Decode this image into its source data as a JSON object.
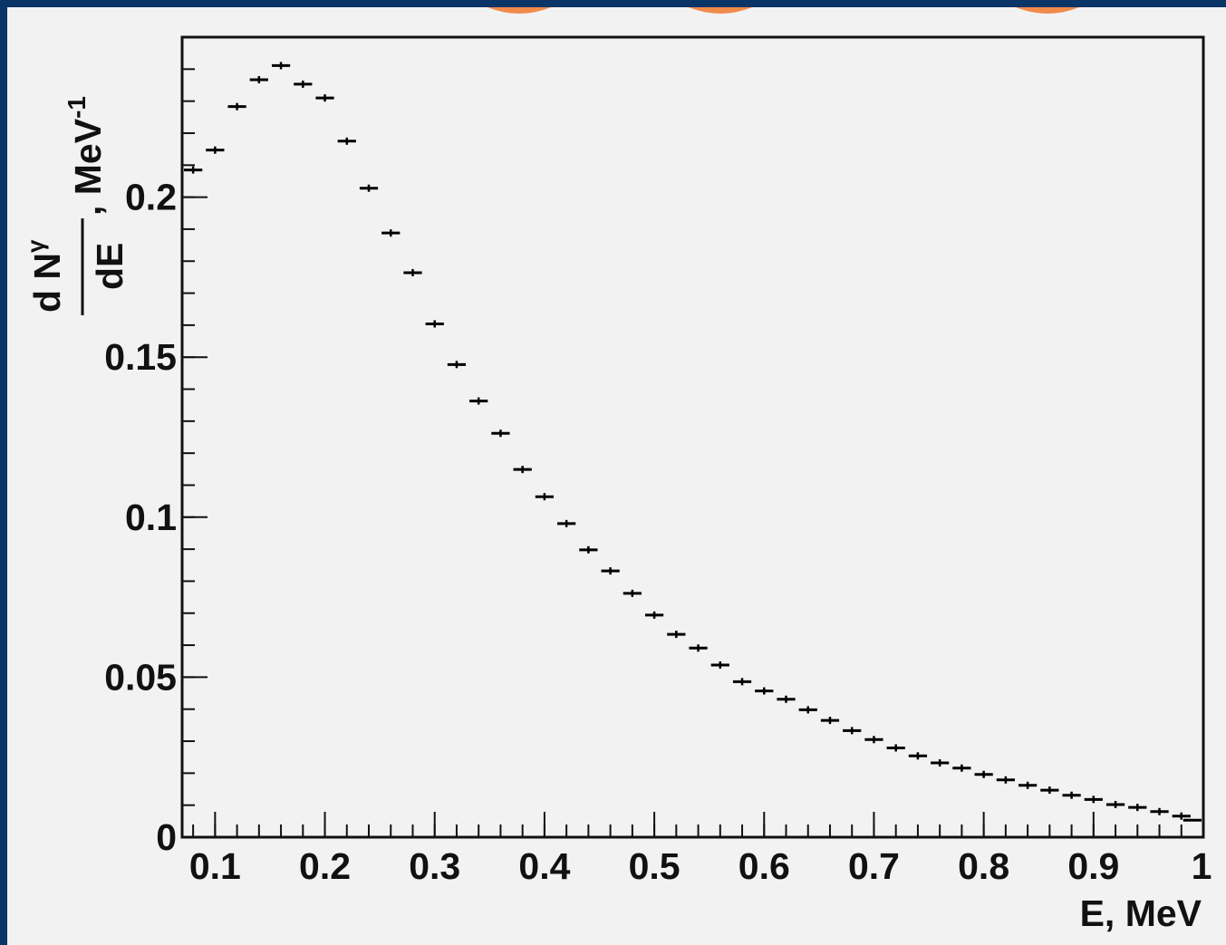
{
  "accent_colors": {
    "background": "#0b3567",
    "panel": "#f2f2f2",
    "decoration": "#f08a4b",
    "ink": "#111111"
  },
  "chart_data": {
    "type": "scatter",
    "title": "",
    "xlabel": "E, MeV",
    "ylabel": {
      "numerator_main": "d N",
      "numerator_sub": "γ",
      "denominator": "dE",
      "unit_prefix": ", MeV",
      "unit_sup": "-1"
    },
    "xlim": [
      0.07,
      1.0
    ],
    "ylim": [
      0,
      0.25
    ],
    "x_ticks": [
      "0.1",
      "0.2",
      "0.3",
      "0.4",
      "0.5",
      "0.6",
      "0.7",
      "0.8",
      "0.9",
      "1"
    ],
    "x_tick_values": [
      0.1,
      0.2,
      0.3,
      0.4,
      0.5,
      0.6,
      0.7,
      0.8,
      0.9,
      1.0
    ],
    "y_ticks": [
      "0",
      "0.05",
      "0.1",
      "0.15",
      "0.2"
    ],
    "y_tick_values": [
      0,
      0.05,
      0.1,
      0.15,
      0.2
    ],
    "bin_width": 0.02,
    "grid": false,
    "series": [
      {
        "x": [
          0.08,
          0.1,
          0.12,
          0.14,
          0.16,
          0.18,
          0.2,
          0.22,
          0.24,
          0.26,
          0.28,
          0.3,
          0.32,
          0.34,
          0.36,
          0.38,
          0.4,
          0.42,
          0.44,
          0.46,
          0.48,
          0.5,
          0.52,
          0.54,
          0.56,
          0.58,
          0.6,
          0.62,
          0.64,
          0.66,
          0.68,
          0.7,
          0.72,
          0.74,
          0.76,
          0.78,
          0.8,
          0.82,
          0.84,
          0.86,
          0.88,
          0.9,
          0.92,
          0.94,
          0.96,
          0.98
        ],
        "y": [
          0.2085,
          0.2147,
          0.2283,
          0.2367,
          0.2411,
          0.2353,
          0.231,
          0.2175,
          0.2028,
          0.1888,
          0.1764,
          0.1604,
          0.1477,
          0.1363,
          0.1262,
          0.1149,
          0.1064,
          0.098,
          0.0898,
          0.0832,
          0.0762,
          0.0694,
          0.0634,
          0.0591,
          0.0538,
          0.0486,
          0.0457,
          0.0431,
          0.0398,
          0.0365,
          0.0333,
          0.0305,
          0.0279,
          0.0254,
          0.0232,
          0.0216,
          0.0196,
          0.0179,
          0.0162,
          0.0147,
          0.0131,
          0.0118,
          0.0102,
          0.0093,
          0.008,
          0.0066
        ]
      },
      {
        "x": [
          0.99
        ],
        "y": [
          0.0053
        ]
      }
    ]
  }
}
